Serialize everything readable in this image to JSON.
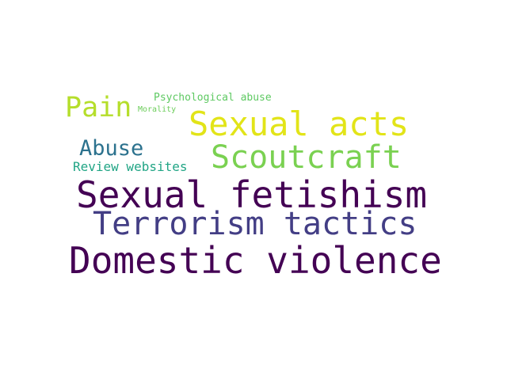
{
  "words": [
    {
      "text": "Domestic violence",
      "color": "#440154"
    },
    {
      "text": "Sexual fetishism",
      "color": "#440154"
    },
    {
      "text": "Terrorism tactics",
      "color": "#433e85"
    },
    {
      "text": "Sexual acts",
      "color": "#e2e418"
    },
    {
      "text": "Scoutcraft",
      "color": "#7ad151"
    },
    {
      "text": "Pain",
      "color": "#b5de2b"
    },
    {
      "text": "Abuse",
      "color": "#2c728e"
    },
    {
      "text": "Review websites",
      "color": "#21a585"
    },
    {
      "text": "Psychological abuse",
      "color": "#5ec962"
    },
    {
      "text": "Morality",
      "color": "#6ccd5a"
    }
  ]
}
